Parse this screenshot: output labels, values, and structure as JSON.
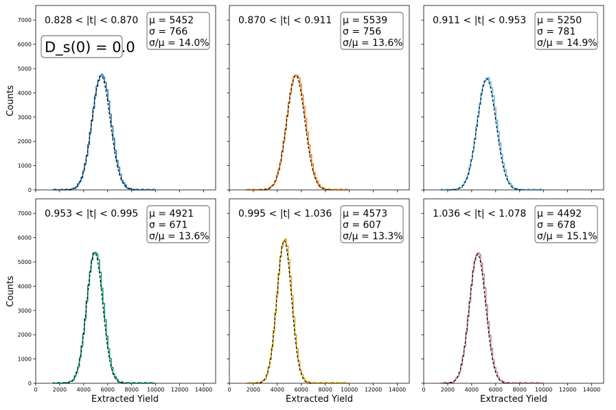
{
  "chart_data": {
    "type": "line",
    "layout": "2x3 grid, shared x and y axes",
    "xlabel": "Extracted Yield",
    "ylabel": "Counts",
    "xlim": [
      0,
      15000
    ],
    "ylim": [
      0,
      7600
    ],
    "x_ticks": [
      0,
      2000,
      4000,
      6000,
      8000,
      10000,
      12000,
      14000
    ],
    "y_ticks": [
      0,
      1000,
      2000,
      3000,
      4000,
      5000,
      6000,
      7000
    ],
    "ds_label": "D_s(0) = 0.0",
    "fit_style": "black dashed gaussian",
    "panels": [
      {
        "range_label": "0.828 < |t| < 0.870",
        "mu": 5452,
        "sigma": 766,
        "ratio": 14.0,
        "peak": 4700,
        "color": "#1f77b4",
        "stats": [
          "μ = 5452",
          "σ = 766",
          "σ/μ = 14.0%"
        ]
      },
      {
        "range_label": "0.870 < |t| < 0.911",
        "mu": 5539,
        "sigma": 756,
        "ratio": 13.6,
        "peak": 4720,
        "color": "#ff7f0e",
        "stats": [
          "μ = 5539",
          "σ = 756",
          "σ/μ = 13.6%"
        ]
      },
      {
        "range_label": "0.911 < |t| < 0.953",
        "mu": 5250,
        "sigma": 781,
        "ratio": 14.9,
        "peak": 4580,
        "color": "#56b4e9",
        "stats": [
          "μ = 5250",
          "σ = 781",
          "σ/μ = 14.9%"
        ]
      },
      {
        "range_label": "0.953 < |t| < 0.995",
        "mu": 4921,
        "sigma": 671,
        "ratio": 13.6,
        "peak": 5380,
        "color": "#009e73",
        "stats": [
          "μ = 4921",
          "σ = 671",
          "σ/μ = 13.6%"
        ]
      },
      {
        "range_label": "0.995 < |t| < 1.036",
        "mu": 4573,
        "sigma": 607,
        "ratio": 13.3,
        "peak": 5880,
        "color": "#e6ab02",
        "stats": [
          "μ = 4573",
          "σ = 607",
          "σ/μ = 13.3%"
        ]
      },
      {
        "range_label": "1.036 < |t| < 1.078",
        "mu": 4492,
        "sigma": 678,
        "ratio": 15.1,
        "peak": 5330,
        "color": "#cc79a7",
        "stats": [
          "μ = 4492",
          "σ = 678",
          "σ/μ = 15.1%"
        ]
      }
    ]
  }
}
